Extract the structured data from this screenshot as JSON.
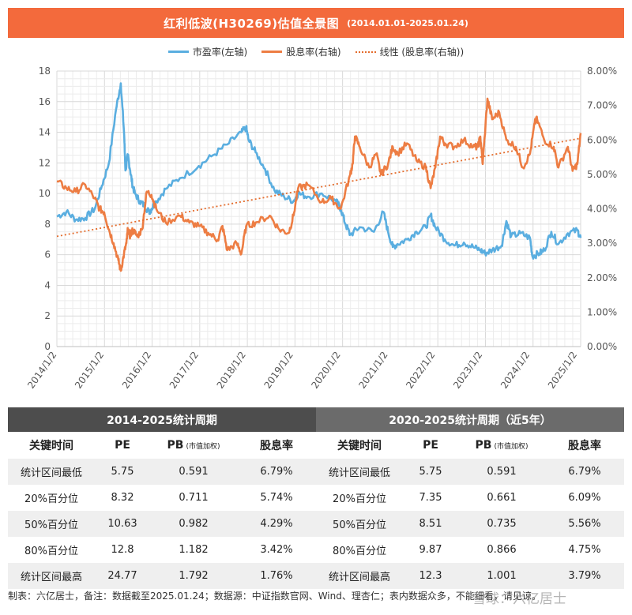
{
  "title": {
    "main": "红利低波(H30269)估值全景图",
    "sub": "(2014.01.01-2025.01.24)"
  },
  "legend": {
    "pe": "市盈率(左轴)",
    "dy": "股息率(右轴)",
    "trend": "线性 (股息率(右轴))"
  },
  "colors": {
    "pe": "#5aaee0",
    "dy": "#ed7d43",
    "trend": "#e46c2c",
    "header": "#f36a3c"
  },
  "chart_data": {
    "type": "line",
    "x_ticks": [
      "2014/1/2",
      "2015/1/2",
      "2016/1/2",
      "2017/1/2",
      "2018/1/2",
      "2019/1/2",
      "2020/1/2",
      "2021/1/2",
      "2022/1/2",
      "2023/1/2",
      "2024/1/2",
      "2025/1/2"
    ],
    "y_left": {
      "ticks": [
        "0",
        "2",
        "4",
        "6",
        "8",
        "10",
        "12",
        "14",
        "16",
        "18"
      ],
      "range": [
        0,
        18
      ]
    },
    "y_right": {
      "ticks": [
        "0.00%",
        "1.00%",
        "2.00%",
        "3.00%",
        "4.00%",
        "5.00%",
        "6.00%",
        "7.00%",
        "8.00%"
      ],
      "range": [
        0,
        8
      ]
    },
    "grid": true,
    "legend_position": "top",
    "series": [
      {
        "name": "市盈率(左轴)",
        "axis": "left",
        "x": [
          2014.0,
          2014.2,
          2014.4,
          2014.6,
          2014.8,
          2014.95,
          2015.1,
          2015.25,
          2015.35,
          2015.42,
          2015.45,
          2015.5,
          2015.55,
          2015.6,
          2015.65,
          2015.75,
          2015.85,
          2015.95,
          2016.0,
          2016.1,
          2016.3,
          2016.6,
          2017.0,
          2017.3,
          2017.6,
          2017.9,
          2018.0,
          2018.05,
          2018.2,
          2018.4,
          2018.6,
          2018.8,
          2019.0,
          2019.1,
          2019.3,
          2019.6,
          2019.9,
          2020.0,
          2020.1,
          2020.2,
          2020.4,
          2020.7,
          2020.9,
          2021.0,
          2021.1,
          2021.2,
          2021.4,
          2021.6,
          2021.8,
          2021.9,
          2022.0,
          2022.2,
          2022.4,
          2022.6,
          2022.8,
          2022.95,
          2023.05,
          2023.2,
          2023.4,
          2023.5,
          2023.6,
          2023.8,
          2024.0,
          2024.05,
          2024.2,
          2024.3,
          2024.45,
          2024.6,
          2024.8,
          2025.0,
          2025.07
        ],
        "y": [
          8.5,
          8.8,
          8.3,
          8.4,
          9.0,
          10.5,
          12.0,
          15.5,
          17.2,
          14.0,
          11.5,
          12.5,
          11.5,
          10.5,
          10.0,
          9.5,
          9.2,
          8.8,
          9.0,
          9.5,
          10.3,
          11.0,
          11.8,
          12.5,
          13.2,
          14.0,
          14.3,
          13.5,
          12.7,
          11.6,
          10.2,
          9.8,
          9.5,
          10.0,
          9.8,
          10.0,
          9.5,
          9.0,
          8.0,
          7.3,
          7.8,
          7.5,
          8.8,
          7.5,
          6.5,
          6.7,
          7.0,
          7.5,
          7.8,
          8.6,
          7.8,
          7.0,
          6.6,
          6.8,
          6.5,
          6.3,
          6.1,
          6.3,
          6.6,
          8.2,
          7.2,
          7.4,
          7.1,
          5.9,
          6.1,
          6.3,
          7.5,
          6.7,
          7.4,
          7.6,
          7.1
        ]
      },
      {
        "name": "股息率(右轴)",
        "axis": "right",
        "x": [
          2014.0,
          2014.2,
          2014.4,
          2014.6,
          2014.8,
          2014.9,
          2015.0,
          2015.1,
          2015.2,
          2015.3,
          2015.35,
          2015.42,
          2015.47,
          2015.5,
          2015.55,
          2015.6,
          2015.7,
          2015.8,
          2015.9,
          2016.0,
          2016.1,
          2016.3,
          2016.6,
          2016.8,
          2017.0,
          2017.2,
          2017.4,
          2017.5,
          2017.6,
          2017.8,
          2017.9,
          2018.0,
          2018.2,
          2018.5,
          2018.7,
          2018.9,
          2019.0,
          2019.1,
          2019.3,
          2019.6,
          2019.8,
          2020.0,
          2020.2,
          2020.25,
          2020.3,
          2020.4,
          2020.6,
          2020.75,
          2020.85,
          2021.0,
          2021.1,
          2021.2,
          2021.4,
          2021.6,
          2021.8,
          2021.9,
          2022.0,
          2022.1,
          2022.2,
          2022.4,
          2022.6,
          2022.8,
          2022.9,
          2022.95,
          2023.0,
          2023.1,
          2023.2,
          2023.35,
          2023.5,
          2023.7,
          2023.85,
          2024.0,
          2024.1,
          2024.15,
          2024.3,
          2024.5,
          2024.6,
          2024.8,
          2024.9,
          2025.0,
          2025.07
        ],
        "y": [
          4.8,
          4.6,
          4.5,
          4.7,
          4.3,
          4.0,
          3.9,
          3.4,
          3.0,
          2.5,
          2.2,
          2.7,
          3.0,
          3.4,
          3.2,
          3.4,
          3.2,
          3.4,
          4.5,
          4.4,
          4.0,
          3.6,
          3.8,
          3.6,
          3.5,
          3.3,
          3.1,
          3.5,
          2.8,
          3.0,
          2.7,
          3.5,
          3.6,
          3.8,
          3.4,
          3.3,
          3.8,
          4.6,
          4.7,
          4.2,
          4.3,
          4.0,
          5.0,
          5.3,
          6.1,
          5.8,
          5.2,
          5.6,
          5.0,
          5.3,
          5.8,
          5.6,
          5.9,
          5.4,
          5.2,
          4.6,
          5.2,
          6.1,
          5.9,
          5.8,
          6.0,
          5.8,
          5.8,
          6.1,
          5.3,
          7.2,
          6.6,
          6.8,
          6.0,
          5.8,
          5.2,
          5.6,
          6.5,
          6.6,
          6.0,
          5.8,
          5.2,
          5.8,
          5.1,
          5.3,
          6.2
        ]
      },
      {
        "name": "线性 (股息率(右轴))",
        "axis": "right",
        "style": "dotted",
        "x": [
          2014.0,
          2025.07
        ],
        "y": [
          3.2,
          6.05
        ]
      }
    ]
  },
  "tables": {
    "left_title": "2014-2025统计周期",
    "right_title": "2020-2025统计周期（近5年）",
    "columns": {
      "time": "关键时间",
      "pe": "PE",
      "pb": "PB",
      "pb_note": "(市值加权)",
      "dy": "股息率"
    },
    "left_rows": [
      {
        "label": "统计区间最低",
        "pe": "5.75",
        "pb": "0.591",
        "dy": "6.79%"
      },
      {
        "label": "20%百分位",
        "pe": "8.32",
        "pb": "0.711",
        "dy": "5.74%"
      },
      {
        "label": "50%百分位",
        "pe": "10.63",
        "pb": "0.982",
        "dy": "4.29%"
      },
      {
        "label": "80%百分位",
        "pe": "12.8",
        "pb": "1.182",
        "dy": "3.42%"
      },
      {
        "label": "统计区间最高",
        "pe": "24.77",
        "pb": "1.792",
        "dy": "1.76%"
      }
    ],
    "right_rows": [
      {
        "label": "统计区间最低",
        "pe": "5.75",
        "pb": "0.591",
        "dy": "6.79%"
      },
      {
        "label": "20%百分位",
        "pe": "7.35",
        "pb": "0.661",
        "dy": "6.09%"
      },
      {
        "label": "50%百分位",
        "pe": "8.51",
        "pb": "0.735",
        "dy": "5.56%"
      },
      {
        "label": "80%百分位",
        "pe": "9.87",
        "pb": "0.866",
        "dy": "4.75%"
      },
      {
        "label": "统计区间最高",
        "pe": "12.3",
        "pb": "1.001",
        "dy": "3.79%"
      }
    ]
  },
  "footer": "制表：六亿居士，备注：数据截至2025.01.24；数据源：中证指数官网、Wind、理杏仁；表内数据众多，不能细看，请见谅。",
  "watermark": "雪球：六亿居士"
}
